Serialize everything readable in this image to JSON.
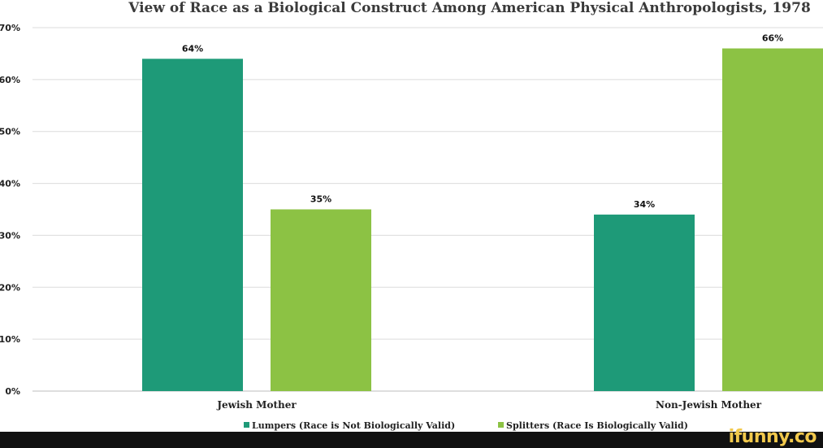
{
  "chart_data": {
    "type": "bar",
    "title": "View of Race as a Biological Construct Among American Physical Anthropologists, 1978",
    "categories": [
      "Jewish Mother",
      "Non-Jewish Mother"
    ],
    "series": [
      {
        "name": "Lumpers (Race is Not Biologically Valid)",
        "color": "#1e9a78",
        "values": [
          64,
          34
        ],
        "labels": [
          "64%",
          "34%"
        ]
      },
      {
        "name": "Splitters (Race Is Biologically Valid)",
        "color": "#8cc244",
        "values": [
          35,
          66
        ],
        "labels": [
          "35%",
          "66%"
        ]
      }
    ],
    "y_ticks": [
      0,
      10,
      20,
      30,
      40,
      50,
      60,
      70
    ],
    "y_tick_labels": [
      "0%",
      "10%",
      "20%",
      "30%",
      "40%",
      "50%",
      "60%",
      "70%"
    ],
    "ylim": [
      0,
      70
    ],
    "xlabel": "",
    "ylabel": "",
    "grid": true,
    "legend_position": "bottom"
  },
  "watermark": {
    "text": "ifunny.co",
    "color": "#f2c94c"
  }
}
